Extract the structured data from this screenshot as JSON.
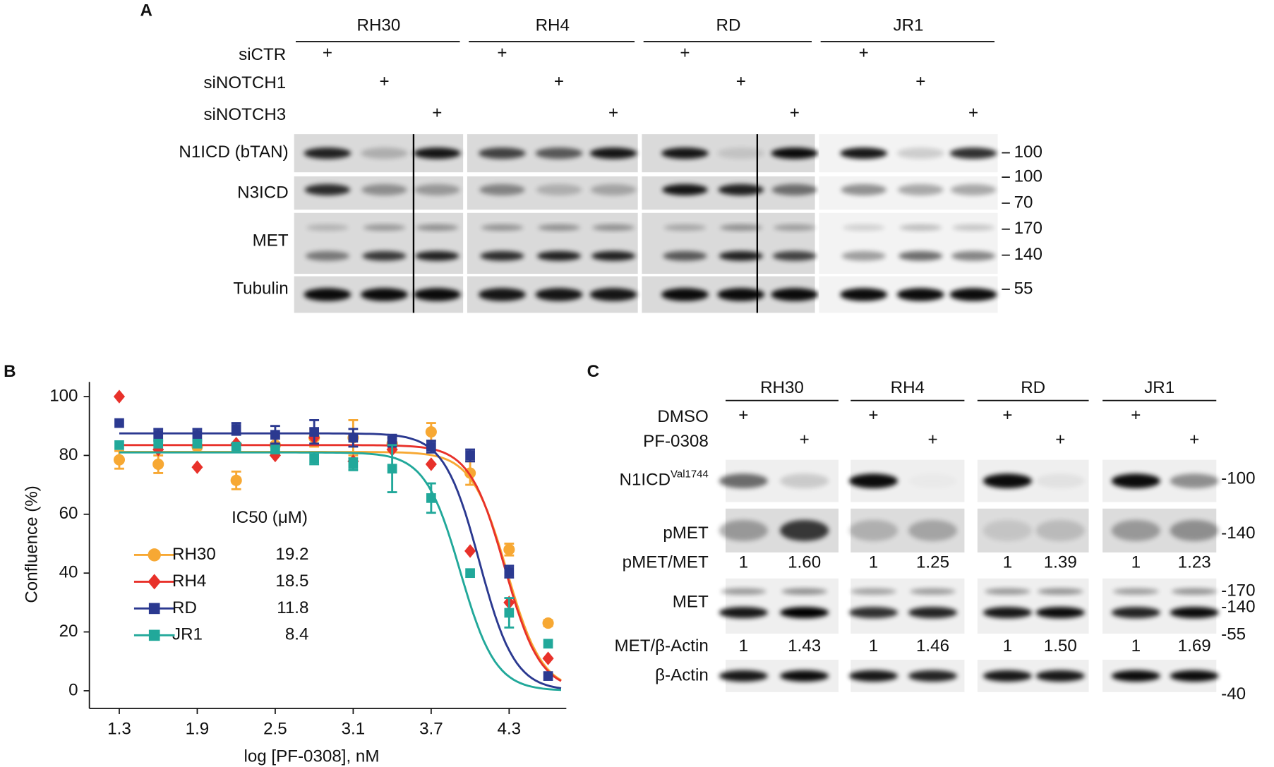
{
  "panel_a": {
    "label": "A",
    "cell_lines": [
      "RH30",
      "RH4",
      "RD",
      "JR1"
    ],
    "treatments": [
      "siCTR",
      "siNOTCH1",
      "siNOTCH3"
    ],
    "plus": "+",
    "blots": [
      "N1ICD (bTAN)",
      "N3ICD",
      "MET",
      "Tubulin"
    ],
    "markers": [
      "100",
      "100",
      "70",
      "170",
      "140",
      "55"
    ]
  },
  "chart_data": {
    "type": "scatter",
    "panel_label": "B",
    "x_label": "log [PF-0308], nM",
    "y_label": "Confluence (%)",
    "legend_title": "IC50 (μM)",
    "x": [
      1.3,
      1.6,
      1.9,
      2.2,
      2.5,
      2.8,
      3.1,
      3.4,
      3.7,
      4.0,
      4.3,
      4.6
    ],
    "xlim": [
      1.07,
      4.74
    ],
    "xticks": [
      1.3,
      1.9,
      2.5,
      3.1,
      3.7,
      4.3
    ],
    "ylim": [
      -6,
      105
    ],
    "yticks": [
      0,
      20,
      40,
      60,
      80,
      100
    ],
    "series": [
      {
        "name": "RH30",
        "color": "#f7a833",
        "marker": "circle",
        "ic50": 19.2,
        "values": [
          78.5,
          77,
          83,
          71.5,
          83.5,
          86,
          86,
          84,
          88,
          74,
          48,
          23
        ],
        "errors": [
          3,
          3,
          1,
          3,
          3,
          3,
          6,
          2,
          3,
          4,
          2,
          1
        ]
      },
      {
        "name": "RH4",
        "color": "#e8312a",
        "marker": "diamond",
        "ic50": 18.5,
        "values": [
          100,
          82,
          76,
          84,
          80,
          86,
          78,
          82,
          77,
          47.5,
          30,
          11
        ],
        "errors": [
          0,
          0,
          0,
          0,
          0,
          0,
          0,
          0,
          0,
          0,
          0,
          0
        ]
      },
      {
        "name": "RD",
        "color": "#2b3990",
        "marker": "square",
        "ic50": 11.8,
        "values": [
          91,
          87,
          87,
          89,
          87,
          88,
          86,
          85,
          83,
          80,
          40.5,
          5
        ],
        "errors": [
          0,
          2,
          2,
          2,
          3,
          4,
          3,
          2,
          2,
          2,
          2,
          0
        ]
      },
      {
        "name": "JR1",
        "color": "#21a89a",
        "marker": "square",
        "ic50": 8.4,
        "values": [
          83.5,
          84,
          84,
          83,
          82,
          79,
          77,
          75.5,
          65.5,
          40,
          26.5,
          16
        ],
        "errors": [
          0,
          0,
          0,
          0,
          0,
          2,
          2,
          8,
          5,
          0,
          5,
          0
        ]
      }
    ]
  },
  "panel_c": {
    "label": "C",
    "cell_lines": [
      "RH30",
      "RH4",
      "RD",
      "JR1"
    ],
    "treatments": [
      "DMSO",
      "PF-0308"
    ],
    "plus": "+",
    "blots": [
      "N1ICD",
      "pMET",
      "MET",
      "β-Actin"
    ],
    "n1icd_sup": "Val1744",
    "ratios": [
      {
        "name": "pMET/MET",
        "values": [
          "1",
          "1.60",
          "1",
          "1.25",
          "1",
          "1.39",
          "1",
          "1.23"
        ]
      },
      {
        "name": "MET/β-Actin",
        "values": [
          "1",
          "1.43",
          "1",
          "1.46",
          "1",
          "1.50",
          "1",
          "1.69"
        ]
      }
    ],
    "markers": [
      "-100",
      "-140",
      "-170",
      "-140",
      "-55",
      "-40"
    ]
  }
}
